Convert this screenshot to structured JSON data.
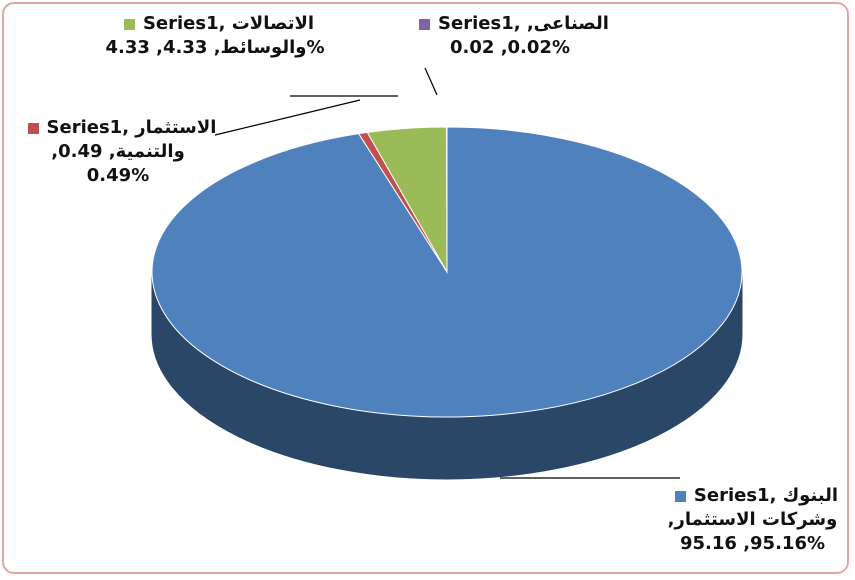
{
  "chart_data": {
    "type": "pie3d",
    "series": [
      {
        "name": "Series1",
        "categories": [
          "البنوك وشركات الاستثمار",
          "الاستثمار والتنمية",
          "الاتصالات والوسائط",
          "الصناعى"
        ],
        "values": [
          95.16,
          0.49,
          4.33,
          0.02
        ],
        "value_labels": [
          "95.16%",
          "0.49%",
          "4.33%",
          "0.02%"
        ],
        "colors": [
          "#4f81bd",
          "#c0504d",
          "#9bbb59",
          "#8064a2"
        ]
      }
    ],
    "separator": ", "
  }
}
